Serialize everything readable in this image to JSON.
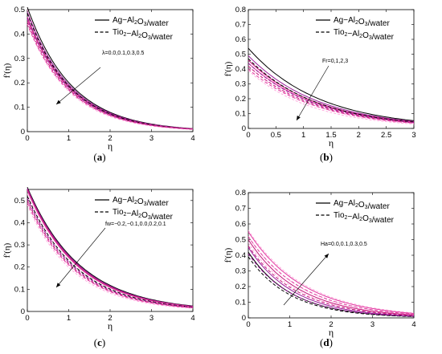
{
  "chart_data": [
    {
      "panel": "a",
      "type": "line",
      "caption": "(a)",
      "xlabel": "η",
      "ylabel": "f'(η)",
      "xlim": [
        0,
        4
      ],
      "ylim": [
        0,
        0.5
      ],
      "xticks": [
        "0",
        "1",
        "2",
        "3",
        "4"
      ],
      "yticks": [
        "0",
        "0.1",
        "0.2",
        "0.3",
        "0.4",
        "0.5"
      ],
      "legend": [
        "Ag−Al2O3/water",
        "Tio2−Al2O3/water"
      ],
      "legend_position": "top-right",
      "annotation": "λ=0.0,0.1,0.3,0.5",
      "arrow": "down-left",
      "series": [
        {
          "group": 0,
          "values": [
            0.51,
            0.465,
            0.44,
            0.42
          ]
        },
        {
          "group": 1,
          "values": [
            0.485,
            0.445,
            0.42,
            0.4
          ]
        }
      ]
    },
    {
      "panel": "b",
      "type": "line",
      "caption": "(b)",
      "xlabel": "η",
      "ylabel": "f'(η)",
      "xlim": [
        0,
        3
      ],
      "ylim": [
        0,
        0.8
      ],
      "xticks": [
        "0",
        "0.5",
        "1",
        "1.5",
        "2",
        "2.5",
        "3"
      ],
      "yticks": [
        "0",
        "0.1",
        "0.2",
        "0.3",
        "0.4",
        "0.5",
        "0.6",
        "0.7",
        "0.8"
      ],
      "legend": [
        "Ag−Al2O3/water",
        "Tio2−Al2O3/water"
      ],
      "legend_position": "top-right",
      "annotation": "Fr=0,1,2,3",
      "arrow": "down-left",
      "series": [
        {
          "group": 0,
          "values": [
            0.54,
            0.49,
            0.46,
            0.44
          ]
        },
        {
          "group": 1,
          "values": [
            0.47,
            0.44,
            0.42,
            0.4
          ]
        }
      ]
    },
    {
      "panel": "c",
      "type": "line",
      "caption": "(c)",
      "xlabel": "η",
      "ylabel": "f'(η)",
      "xlim": [
        0,
        4
      ],
      "ylim": [
        0,
        0.55
      ],
      "xticks": [
        "0",
        "1",
        "2",
        "3",
        "4"
      ],
      "yticks": [
        "0",
        "0.1",
        "0.2",
        "0.3",
        "0.4",
        "0.5"
      ],
      "legend": [
        "Ag−Al2O3/water",
        "Tio2−Al2O3/water"
      ],
      "legend_position": "top-right",
      "annotation": "fw=−0.2,−0.1,0.0,0.2,0.1",
      "arrow": "down-left",
      "series": [
        {
          "group": 0,
          "values": [
            0.56,
            0.55,
            0.545,
            0.54
          ]
        },
        {
          "group": 1,
          "values": [
            0.52,
            0.51,
            0.5,
            0.49
          ]
        }
      ]
    },
    {
      "panel": "d",
      "type": "line",
      "caption": "(d)",
      "xlabel": "η",
      "ylabel": "f'(η)",
      "xlim": [
        0,
        4
      ],
      "ylim": [
        0,
        0.8
      ],
      "xticks": [
        "0",
        "1",
        "2",
        "3",
        "4"
      ],
      "yticks": [
        "0",
        "0.1",
        "0.2",
        "0.3",
        "0.4",
        "0.5",
        "0.6",
        "0.7",
        "0.8"
      ],
      "legend": [
        "Ag−Al2O3/water",
        "Tio2−Al2O3/water"
      ],
      "legend_position": "top-right",
      "annotation": "Ha=0.0,0.1,0.3,0.5",
      "arrow": "up-right",
      "series": [
        {
          "group": 0,
          "values": [
            0.42,
            0.45,
            0.5,
            0.55
          ]
        },
        {
          "group": 1,
          "values": [
            0.39,
            0.42,
            0.47,
            0.52
          ]
        }
      ]
    }
  ],
  "colors": {
    "ag_solid": "#000000",
    "family": [
      "#000000",
      "#9b1b9b",
      "#c2187a",
      "#e03aa0"
    ],
    "pink_band": "#ff9ad8"
  }
}
